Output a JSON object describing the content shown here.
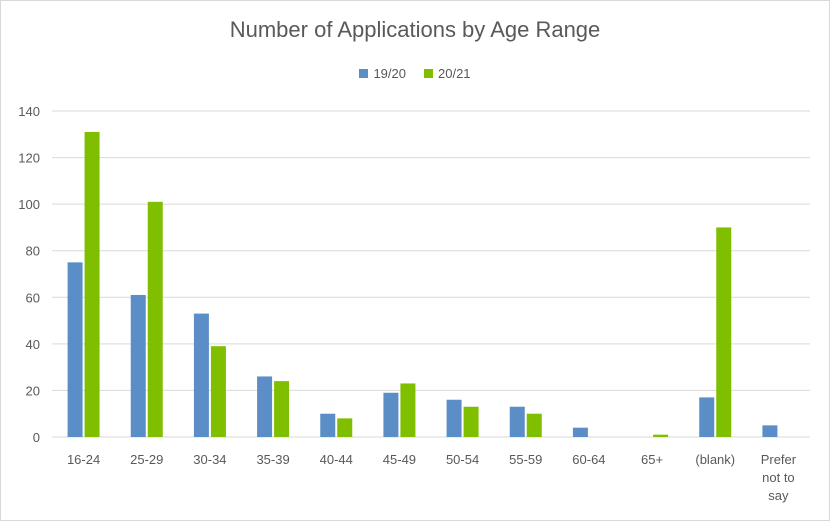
{
  "chart_data": {
    "type": "bar",
    "title": "Number of Applications by Age Range",
    "xlabel": "",
    "ylabel": "",
    "ylim": [
      0,
      140
    ],
    "yticks": [
      0,
      20,
      40,
      60,
      80,
      100,
      120,
      140
    ],
    "grid": true,
    "legend_position": "top",
    "categories": [
      "16-24",
      "25-29",
      "30-34",
      "35-39",
      "40-44",
      "45-49",
      "50-54",
      "55-59",
      "60-64",
      "65+",
      "(blank)",
      "Prefer not to say"
    ],
    "series": [
      {
        "name": "19/20",
        "color": "#5b8ec6",
        "values": [
          75,
          61,
          53,
          26,
          10,
          19,
          16,
          13,
          4,
          0,
          17,
          5
        ]
      },
      {
        "name": "20/21",
        "color": "#7fbf00",
        "values": [
          131,
          101,
          39,
          24,
          8,
          23,
          13,
          10,
          0,
          1,
          90,
          0
        ]
      }
    ]
  }
}
